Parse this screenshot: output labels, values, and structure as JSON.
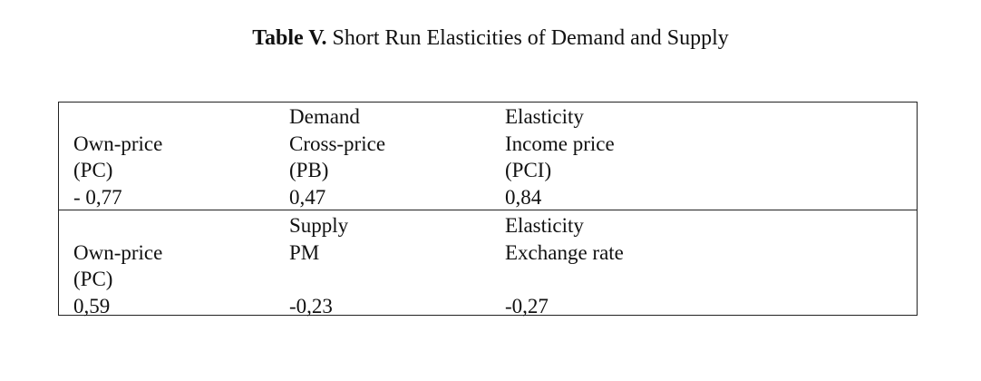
{
  "caption": {
    "label": "Table V.",
    "text": " Short Run Elasticities of Demand and Supply"
  },
  "demand_block": {
    "col1": [
      "",
      "Own-price",
      "(PC)",
      "- 0,77"
    ],
    "col2": [
      "Demand",
      "Cross-price",
      "(PB)",
      "0,47"
    ],
    "col3": [
      "Elasticity",
      "Income price",
      "(PCI)",
      "0,84"
    ]
  },
  "supply_block": {
    "col1": [
      "",
      "Own-price",
      "(PC)",
      "0,59"
    ],
    "col2": [
      "Supply",
      "PM",
      "",
      "-0,23"
    ],
    "col3": [
      "Elasticity",
      "Exchange rate",
      "",
      "-0,27"
    ]
  }
}
